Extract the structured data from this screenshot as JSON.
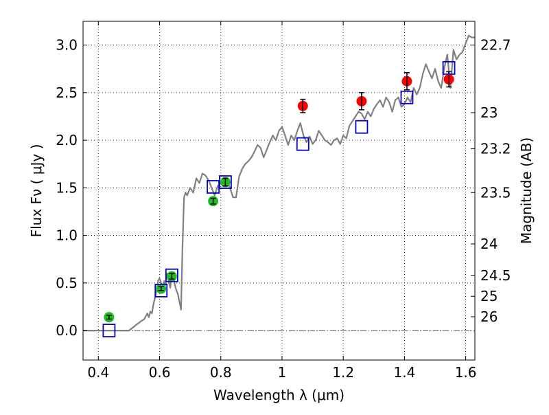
{
  "chart_data": {
    "type": "scatter",
    "xlabel": "Wavelength  λ (μm)",
    "ylabel": "Flux  Fν  ( μJy )",
    "y2label": "Magnitude (AB)",
    "xlim": [
      0.35,
      1.63
    ],
    "ylim": [
      -0.31,
      3.25
    ],
    "xticks": [
      0.4,
      0.6,
      0.8,
      1.0,
      1.2,
      1.4,
      1.6
    ],
    "xtick_labels": [
      "0.4",
      "0.6",
      "0.8",
      "1",
      "1.2",
      "1.4",
      "1.6"
    ],
    "yticks": [
      0.0,
      0.5,
      1.0,
      1.5,
      2.0,
      2.5,
      3.0
    ],
    "ytick_labels": [
      "0.0",
      "0.5",
      "1.0",
      "1.5",
      "2.0",
      "2.5",
      "3.0"
    ],
    "magnitude_ticks": [
      {
        "label": "22.7",
        "flux": 3.0
      },
      {
        "label": "23",
        "flux": 2.29
      },
      {
        "label": "23.2",
        "flux": 1.91
      },
      {
        "label": "23.5",
        "flux": 1.45
      },
      {
        "label": "24",
        "flux": 0.91
      },
      {
        "label": "24.5",
        "flux": 0.58
      },
      {
        "label": "25",
        "flux": 0.36
      },
      {
        "label": "26",
        "flux": 0.145
      }
    ],
    "grid": true,
    "colors": {
      "spectrum": "#808080",
      "optical": "#22bb22",
      "infrared": "#ff0000",
      "model": "#0000cc",
      "errorbar": "#000000",
      "zero_line": "#555555"
    },
    "series": [
      {
        "type": "line",
        "color": "#808080",
        "x": [
          0.35,
          0.5,
          0.52,
          0.54,
          0.55,
          0.56,
          0.565,
          0.57,
          0.575,
          0.58,
          0.585,
          0.59,
          0.595,
          0.6,
          0.605,
          0.61,
          0.615,
          0.62,
          0.625,
          0.63,
          0.635,
          0.64,
          0.645,
          0.65,
          0.655,
          0.66,
          0.665,
          0.67,
          0.675,
          0.68,
          0.685,
          0.69,
          0.7,
          0.71,
          0.72,
          0.73,
          0.74,
          0.75,
          0.76,
          0.77,
          0.78,
          0.79,
          0.8,
          0.81,
          0.82,
          0.83,
          0.84,
          0.85,
          0.86,
          0.87,
          0.88,
          0.89,
          0.9,
          0.91,
          0.92,
          0.93,
          0.94,
          0.95,
          0.96,
          0.97,
          0.98,
          0.99,
          1.0,
          1.01,
          1.02,
          1.03,
          1.04,
          1.05,
          1.06,
          1.07,
          1.08,
          1.09,
          1.1,
          1.11,
          1.12,
          1.13,
          1.14,
          1.15,
          1.16,
          1.17,
          1.18,
          1.19,
          1.2,
          1.21,
          1.22,
          1.23,
          1.24,
          1.25,
          1.26,
          1.27,
          1.28,
          1.29,
          1.3,
          1.31,
          1.32,
          1.33,
          1.34,
          1.35,
          1.36,
          1.37,
          1.38,
          1.39,
          1.4,
          1.41,
          1.42,
          1.43,
          1.44,
          1.45,
          1.46,
          1.47,
          1.48,
          1.49,
          1.5,
          1.51,
          1.52,
          1.53,
          1.54,
          1.55,
          1.56,
          1.57,
          1.58,
          1.59,
          1.6,
          1.61,
          1.62,
          1.63
        ],
        "y": [
          0.0,
          0.0,
          0.05,
          0.1,
          0.12,
          0.18,
          0.14,
          0.2,
          0.18,
          0.28,
          0.34,
          0.42,
          0.52,
          0.55,
          0.5,
          0.46,
          0.52,
          0.48,
          0.6,
          0.52,
          0.45,
          0.6,
          0.55,
          0.48,
          0.42,
          0.38,
          0.3,
          0.22,
          0.9,
          1.4,
          1.45,
          1.42,
          1.5,
          1.45,
          1.6,
          1.55,
          1.65,
          1.63,
          1.58,
          1.5,
          1.42,
          1.52,
          1.55,
          1.58,
          1.6,
          1.5,
          1.4,
          1.4,
          1.62,
          1.7,
          1.75,
          1.78,
          1.82,
          1.88,
          1.95,
          1.92,
          1.82,
          1.9,
          1.98,
          2.05,
          2.0,
          2.1,
          2.14,
          2.05,
          1.95,
          2.05,
          2.0,
          2.1,
          2.18,
          2.05,
          1.98,
          2.04,
          1.96,
          2.0,
          2.1,
          2.05,
          2.0,
          1.98,
          1.95,
          2.0,
          2.02,
          1.96,
          2.05,
          2.02,
          2.15,
          2.2,
          2.25,
          2.3,
          2.28,
          2.22,
          2.3,
          2.25,
          2.33,
          2.38,
          2.42,
          2.35,
          2.45,
          2.4,
          2.3,
          2.42,
          2.45,
          2.35,
          2.38,
          2.45,
          2.4,
          2.55,
          2.48,
          2.55,
          2.7,
          2.8,
          2.72,
          2.65,
          2.75,
          2.62,
          2.55,
          2.76,
          2.9,
          2.55,
          2.95,
          2.85,
          2.9,
          2.93,
          3.02,
          3.1,
          3.08,
          3.08
        ]
      },
      {
        "type": "scatter",
        "marker": "circle",
        "color": "#22bb22",
        "x": [
          0.435,
          0.605,
          0.64,
          0.775,
          0.815
        ],
        "y": [
          0.14,
          0.44,
          0.57,
          1.36,
          1.56
        ],
        "yerr": [
          0.02,
          0.02,
          0.03,
          0.03,
          0.04
        ]
      },
      {
        "type": "scatter",
        "marker": "circle",
        "color": "#ff0000",
        "x": [
          1.068,
          1.26,
          1.408,
          1.545
        ],
        "y": [
          2.36,
          2.41,
          2.62,
          2.64
        ],
        "yerr": [
          0.07,
          0.09,
          0.09,
          0.08
        ]
      },
      {
        "type": "scatter",
        "marker": "open-square",
        "color": "#0000cc",
        "x": [
          0.435,
          0.605,
          0.64,
          0.775,
          0.815,
          1.068,
          1.26,
          1.408,
          1.545
        ],
        "y": [
          0.0,
          0.42,
          0.58,
          1.51,
          1.56,
          1.96,
          2.14,
          2.45,
          2.76
        ]
      }
    ]
  }
}
